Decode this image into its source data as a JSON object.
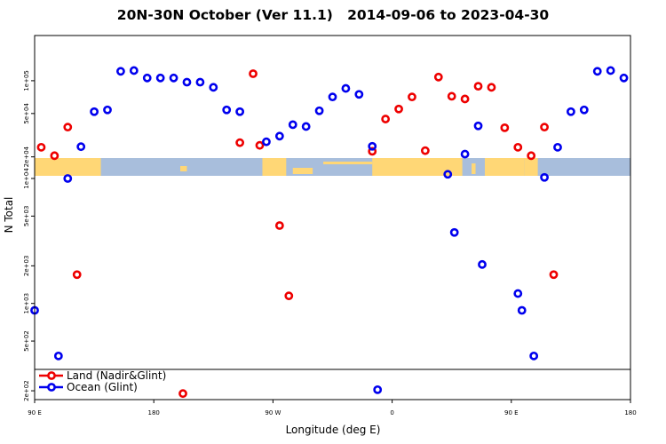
{
  "chart_data": {
    "type": "scatter",
    "title": "20N-30N October (Ver 11.1)   2014-09-06 to 2023-04-30",
    "xlabel": "Longitude (deg E)",
    "ylabel": "N Total",
    "x_ticks": [
      {
        "value": 90,
        "label": "90 E"
      },
      {
        "value": 180,
        "label": "180"
      },
      {
        "value": 270,
        "label": "90 W"
      },
      {
        "value": 360,
        "label": "0"
      },
      {
        "value": 450,
        "label": "90 E"
      },
      {
        "value": 540,
        "label": "180"
      }
    ],
    "xlim": [
      90,
      540
    ],
    "y_scale": "log",
    "upper_panel": {
      "ylim": [
        19500,
        260000
      ],
      "y_ticks": [
        {
          "value": 20000,
          "label": "2e+04"
        },
        {
          "value": 50000,
          "label": "5e+04"
        },
        {
          "value": 100000,
          "label": "1e+05"
        }
      ]
    },
    "lower_panel": {
      "ylim": [
        170,
        10500
      ],
      "y_ticks": [
        {
          "value": 200,
          "label": "2e+02"
        },
        {
          "value": 500,
          "label": "5e+02"
        },
        {
          "value": 1000,
          "label": "1e+03"
        },
        {
          "value": 2000,
          "label": "2e+03"
        },
        {
          "value": 5000,
          "label": "5e+03"
        },
        {
          "value": 10000,
          "label": "1e+04"
        }
      ]
    },
    "legend_position": "bottom-left",
    "colors": {
      "land": "#ee0000",
      "ocean": "#0000ee",
      "map_ocean": "#a8bedc",
      "map_land": "#ffd776"
    },
    "series": [
      {
        "name": "Land (Nadir&Glint)",
        "color": "#ee0000",
        "points": [
          {
            "x": 95,
            "y": 24500,
            "panel": "upper"
          },
          {
            "x": 105,
            "y": 20500,
            "panel": "upper"
          },
          {
            "x": 115,
            "y": 37500,
            "panel": "upper"
          },
          {
            "x": 245,
            "y": 27000,
            "panel": "upper"
          },
          {
            "x": 255,
            "y": 116000,
            "panel": "upper"
          },
          {
            "x": 260,
            "y": 25500,
            "panel": "upper"
          },
          {
            "x": 345,
            "y": 22500,
            "panel": "upper"
          },
          {
            "x": 355,
            "y": 44500,
            "panel": "upper"
          },
          {
            "x": 365,
            "y": 55000,
            "panel": "upper"
          },
          {
            "x": 375,
            "y": 71000,
            "panel": "upper"
          },
          {
            "x": 385,
            "y": 22800,
            "panel": "upper"
          },
          {
            "x": 395,
            "y": 108000,
            "panel": "upper"
          },
          {
            "x": 405,
            "y": 72000,
            "panel": "upper"
          },
          {
            "x": 415,
            "y": 68000,
            "panel": "upper"
          },
          {
            "x": 425,
            "y": 89000,
            "panel": "upper"
          },
          {
            "x": 435,
            "y": 87000,
            "panel": "upper"
          },
          {
            "x": 445,
            "y": 37000,
            "panel": "upper"
          },
          {
            "x": 455,
            "y": 24500,
            "panel": "upper"
          },
          {
            "x": 465,
            "y": 20500,
            "panel": "upper"
          },
          {
            "x": 475,
            "y": 37500,
            "panel": "upper"
          },
          {
            "x": 122,
            "y": 1700,
            "panel": "lower"
          },
          {
            "x": 275,
            "y": 4200,
            "panel": "lower"
          },
          {
            "x": 282,
            "y": 1150,
            "panel": "lower"
          },
          {
            "x": 482,
            "y": 1700,
            "panel": "lower"
          },
          {
            "x": 202,
            "y": 190,
            "panel": "lower"
          }
        ]
      },
      {
        "name": "Ocean (Glint)",
        "color": "#0000ee",
        "points": [
          {
            "x": 125,
            "y": 24800,
            "panel": "upper"
          },
          {
            "x": 135,
            "y": 52000,
            "panel": "upper"
          },
          {
            "x": 145,
            "y": 54000,
            "panel": "upper"
          },
          {
            "x": 155,
            "y": 122000,
            "panel": "upper"
          },
          {
            "x": 165,
            "y": 124000,
            "panel": "upper"
          },
          {
            "x": 175,
            "y": 106000,
            "panel": "upper"
          },
          {
            "x": 185,
            "y": 106000,
            "panel": "upper"
          },
          {
            "x": 195,
            "y": 106000,
            "panel": "upper"
          },
          {
            "x": 205,
            "y": 97000,
            "panel": "upper"
          },
          {
            "x": 215,
            "y": 97000,
            "panel": "upper"
          },
          {
            "x": 225,
            "y": 87000,
            "panel": "upper"
          },
          {
            "x": 235,
            "y": 54000,
            "panel": "upper"
          },
          {
            "x": 245,
            "y": 52000,
            "panel": "upper"
          },
          {
            "x": 265,
            "y": 27500,
            "panel": "upper"
          },
          {
            "x": 275,
            "y": 31000,
            "panel": "upper"
          },
          {
            "x": 285,
            "y": 39500,
            "panel": "upper"
          },
          {
            "x": 295,
            "y": 38000,
            "panel": "upper"
          },
          {
            "x": 305,
            "y": 53000,
            "panel": "upper"
          },
          {
            "x": 315,
            "y": 71000,
            "panel": "upper"
          },
          {
            "x": 325,
            "y": 85000,
            "panel": "upper"
          },
          {
            "x": 335,
            "y": 75000,
            "panel": "upper"
          },
          {
            "x": 345,
            "y": 25000,
            "panel": "upper"
          },
          {
            "x": 415,
            "y": 21200,
            "panel": "upper"
          },
          {
            "x": 425,
            "y": 38500,
            "panel": "upper"
          },
          {
            "x": 485,
            "y": 24500,
            "panel": "upper"
          },
          {
            "x": 495,
            "y": 52000,
            "panel": "upper"
          },
          {
            "x": 505,
            "y": 54000,
            "panel": "upper"
          },
          {
            "x": 515,
            "y": 122000,
            "panel": "upper"
          },
          {
            "x": 525,
            "y": 124000,
            "panel": "upper"
          },
          {
            "x": 535,
            "y": 106000,
            "panel": "upper"
          },
          {
            "x": 115,
            "y": 10000,
            "panel": "lower"
          },
          {
            "x": 402,
            "y": 10800,
            "panel": "lower"
          },
          {
            "x": 475,
            "y": 10200,
            "panel": "lower"
          },
          {
            "x": 90,
            "y": 880,
            "panel": "lower"
          },
          {
            "x": 108,
            "y": 380,
            "panel": "lower"
          },
          {
            "x": 407,
            "y": 3700,
            "panel": "lower"
          },
          {
            "x": 428,
            "y": 2050,
            "panel": "lower"
          },
          {
            "x": 455,
            "y": 1200,
            "panel": "lower"
          },
          {
            "x": 458,
            "y": 880,
            "panel": "lower"
          },
          {
            "x": 467,
            "y": 380,
            "panel": "lower"
          },
          {
            "x": 349,
            "y": 204,
            "panel": "lower"
          }
        ]
      }
    ]
  }
}
